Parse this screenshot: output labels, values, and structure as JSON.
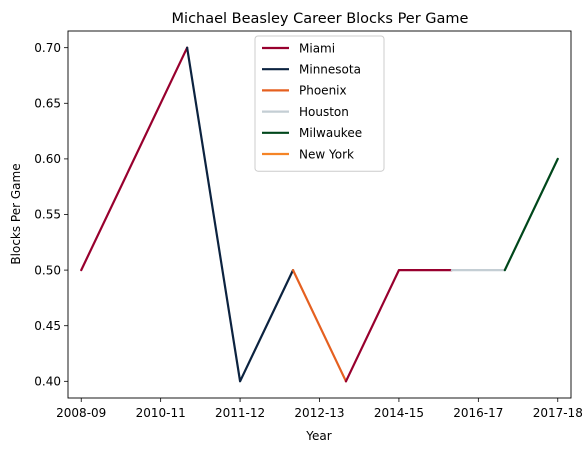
{
  "chart_data": {
    "type": "line",
    "title": "Michael Beasley Career Blocks Per Game",
    "xlabel": "Year",
    "ylabel": "Blocks Per Game",
    "x_tick_labels": [
      "2008-09",
      "2010-11",
      "2011-12",
      "2012-13",
      "2014-15",
      "2016-17",
      "2017-18"
    ],
    "y_ticks": [
      0.4,
      0.45,
      0.5,
      0.55,
      0.6,
      0.65,
      0.7
    ],
    "y_tick_labels": [
      "0.40",
      "0.45",
      "0.50",
      "0.55",
      "0.60",
      "0.65",
      "0.70"
    ],
    "xlim": [
      -0.25,
      9.25
    ],
    "ylim": [
      0.385,
      0.715
    ],
    "grid": false,
    "legend_position": "top-center",
    "series": [
      {
        "name": "Miami",
        "color": "#98002E",
        "points": [
          [
            0,
            0.5
          ],
          [
            2,
            0.7
          ]
        ]
      },
      {
        "name": "Minnesota",
        "color": "#0C2340",
        "points": [
          [
            2,
            0.7
          ],
          [
            3,
            0.4
          ],
          [
            4,
            0.5
          ]
        ]
      },
      {
        "name": "Phoenix",
        "color": "#E56020",
        "points": [
          [
            4,
            0.5
          ],
          [
            5,
            0.4
          ]
        ]
      },
      {
        "name": "Miami",
        "color": "#98002E",
        "points": [
          [
            5,
            0.4
          ],
          [
            6,
            0.5
          ],
          [
            7,
            0.5
          ]
        ]
      },
      {
        "name": "Houston",
        "color": "#C4CED4",
        "points": [
          [
            7,
            0.5
          ],
          [
            8,
            0.5
          ]
        ]
      },
      {
        "name": "Milwaukee",
        "color": "#00471B",
        "points": [
          [
            8,
            0.5
          ],
          [
            9,
            0.6
          ]
        ]
      }
    ],
    "legend": [
      {
        "name": "Miami",
        "color": "#98002E"
      },
      {
        "name": "Minnesota",
        "color": "#0C2340"
      },
      {
        "name": "Phoenix",
        "color": "#E56020"
      },
      {
        "name": "Houston",
        "color": "#C4CED4"
      },
      {
        "name": "Milwaukee",
        "color": "#00471B"
      },
      {
        "name": "New York",
        "color": "#F58426"
      }
    ]
  }
}
